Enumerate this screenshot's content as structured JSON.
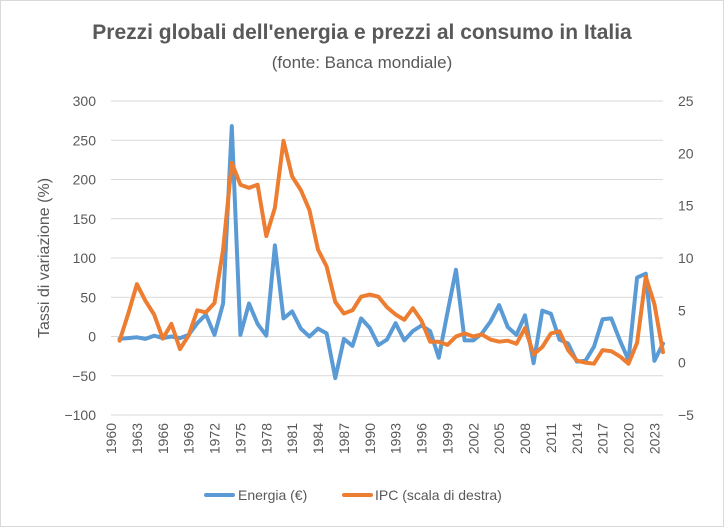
{
  "chart_data": {
    "type": "line",
    "title": "Prezzi globali dell'energia e prezzi al consumo  in Italia",
    "subtitle": "(fonte: Banca mondiale)",
    "ylabel": "Tassi di variazione (%)",
    "xlabel": "",
    "ylim": [
      -100,
      300
    ],
    "yticks": [
      -100,
      -50,
      0,
      50,
      100,
      150,
      200,
      250,
      300
    ],
    "ylim_right": [
      -5,
      25
    ],
    "yticks_right": [
      -5,
      0,
      5,
      10,
      15,
      20,
      25
    ],
    "xlim": [
      1960,
      2024
    ],
    "xticks": [
      1960,
      1963,
      1966,
      1969,
      1972,
      1975,
      1978,
      1981,
      1984,
      1987,
      1990,
      1993,
      1996,
      1999,
      2002,
      2005,
      2008,
      2011,
      2014,
      2017,
      2020,
      2023
    ],
    "grid": "horizontal",
    "legend_position": "bottom",
    "series": [
      {
        "name": "Energia (€)",
        "axis": "left",
        "color": "#5b9bd5",
        "x": [
          1961,
          1962,
          1963,
          1964,
          1965,
          1966,
          1967,
          1968,
          1969,
          1970,
          1971,
          1972,
          1973,
          1974,
          1975,
          1976,
          1977,
          1978,
          1979,
          1980,
          1981,
          1982,
          1983,
          1984,
          1985,
          1986,
          1987,
          1988,
          1989,
          1990,
          1991,
          1992,
          1993,
          1994,
          1995,
          1996,
          1997,
          1998,
          1999,
          2000,
          2001,
          2002,
          2003,
          2004,
          2005,
          2006,
          2007,
          2008,
          2009,
          2010,
          2011,
          2012,
          2013,
          2014,
          2015,
          2016,
          2017,
          2018,
          2019,
          2020,
          2021,
          2022,
          2023,
          2024
        ],
        "values": [
          -3,
          -2,
          -1,
          -3,
          1,
          -2,
          0,
          -2,
          2,
          17,
          28,
          2,
          42,
          268,
          2,
          42,
          16,
          1,
          116,
          23,
          32,
          10,
          0,
          10,
          4,
          -53,
          -3,
          -12,
          23,
          11,
          -11,
          -4,
          17,
          -5,
          7,
          14,
          7,
          -27,
          30,
          85,
          -5,
          -5,
          4,
          19,
          40,
          12,
          2,
          27,
          -34,
          33,
          29,
          -4,
          -9,
          -32,
          -31,
          -13,
          22,
          23,
          -5,
          -30,
          75,
          80,
          -31,
          -9
        ]
      },
      {
        "name": "IPC (scala di destra)",
        "axis": "right",
        "color": "#ed7d31",
        "x": [
          1961,
          1962,
          1963,
          1964,
          1965,
          1966,
          1967,
          1968,
          1969,
          1970,
          1971,
          1972,
          1973,
          1974,
          1975,
          1976,
          1977,
          1978,
          1979,
          1980,
          1981,
          1982,
          1983,
          1984,
          1985,
          1986,
          1987,
          1988,
          1989,
          1990,
          1991,
          1992,
          1993,
          1994,
          1995,
          1996,
          1997,
          1998,
          1999,
          2000,
          2001,
          2002,
          2003,
          2004,
          2005,
          2006,
          2007,
          2008,
          2009,
          2010,
          2011,
          2012,
          2013,
          2014,
          2015,
          2016,
          2017,
          2018,
          2019,
          2020,
          2021,
          2022,
          2023,
          2024
        ],
        "values": [
          2.1,
          4.7,
          7.5,
          5.9,
          4.6,
          2.3,
          3.7,
          1.3,
          2.6,
          5.0,
          4.8,
          5.7,
          10.8,
          19.1,
          17.0,
          16.7,
          17.0,
          12.1,
          14.8,
          21.2,
          17.8,
          16.5,
          14.6,
          10.8,
          9.2,
          5.8,
          4.7,
          5.0,
          6.3,
          6.5,
          6.3,
          5.3,
          4.6,
          4.1,
          5.2,
          4.0,
          2.0,
          2.0,
          1.7,
          2.5,
          2.8,
          2.5,
          2.7,
          2.2,
          2.0,
          2.1,
          1.8,
          3.3,
          0.8,
          1.5,
          2.8,
          3.0,
          1.2,
          0.2,
          0.0,
          -0.1,
          1.2,
          1.1,
          0.6,
          -0.1,
          1.9,
          8.2,
          5.6,
          1.0
        ]
      }
    ]
  }
}
